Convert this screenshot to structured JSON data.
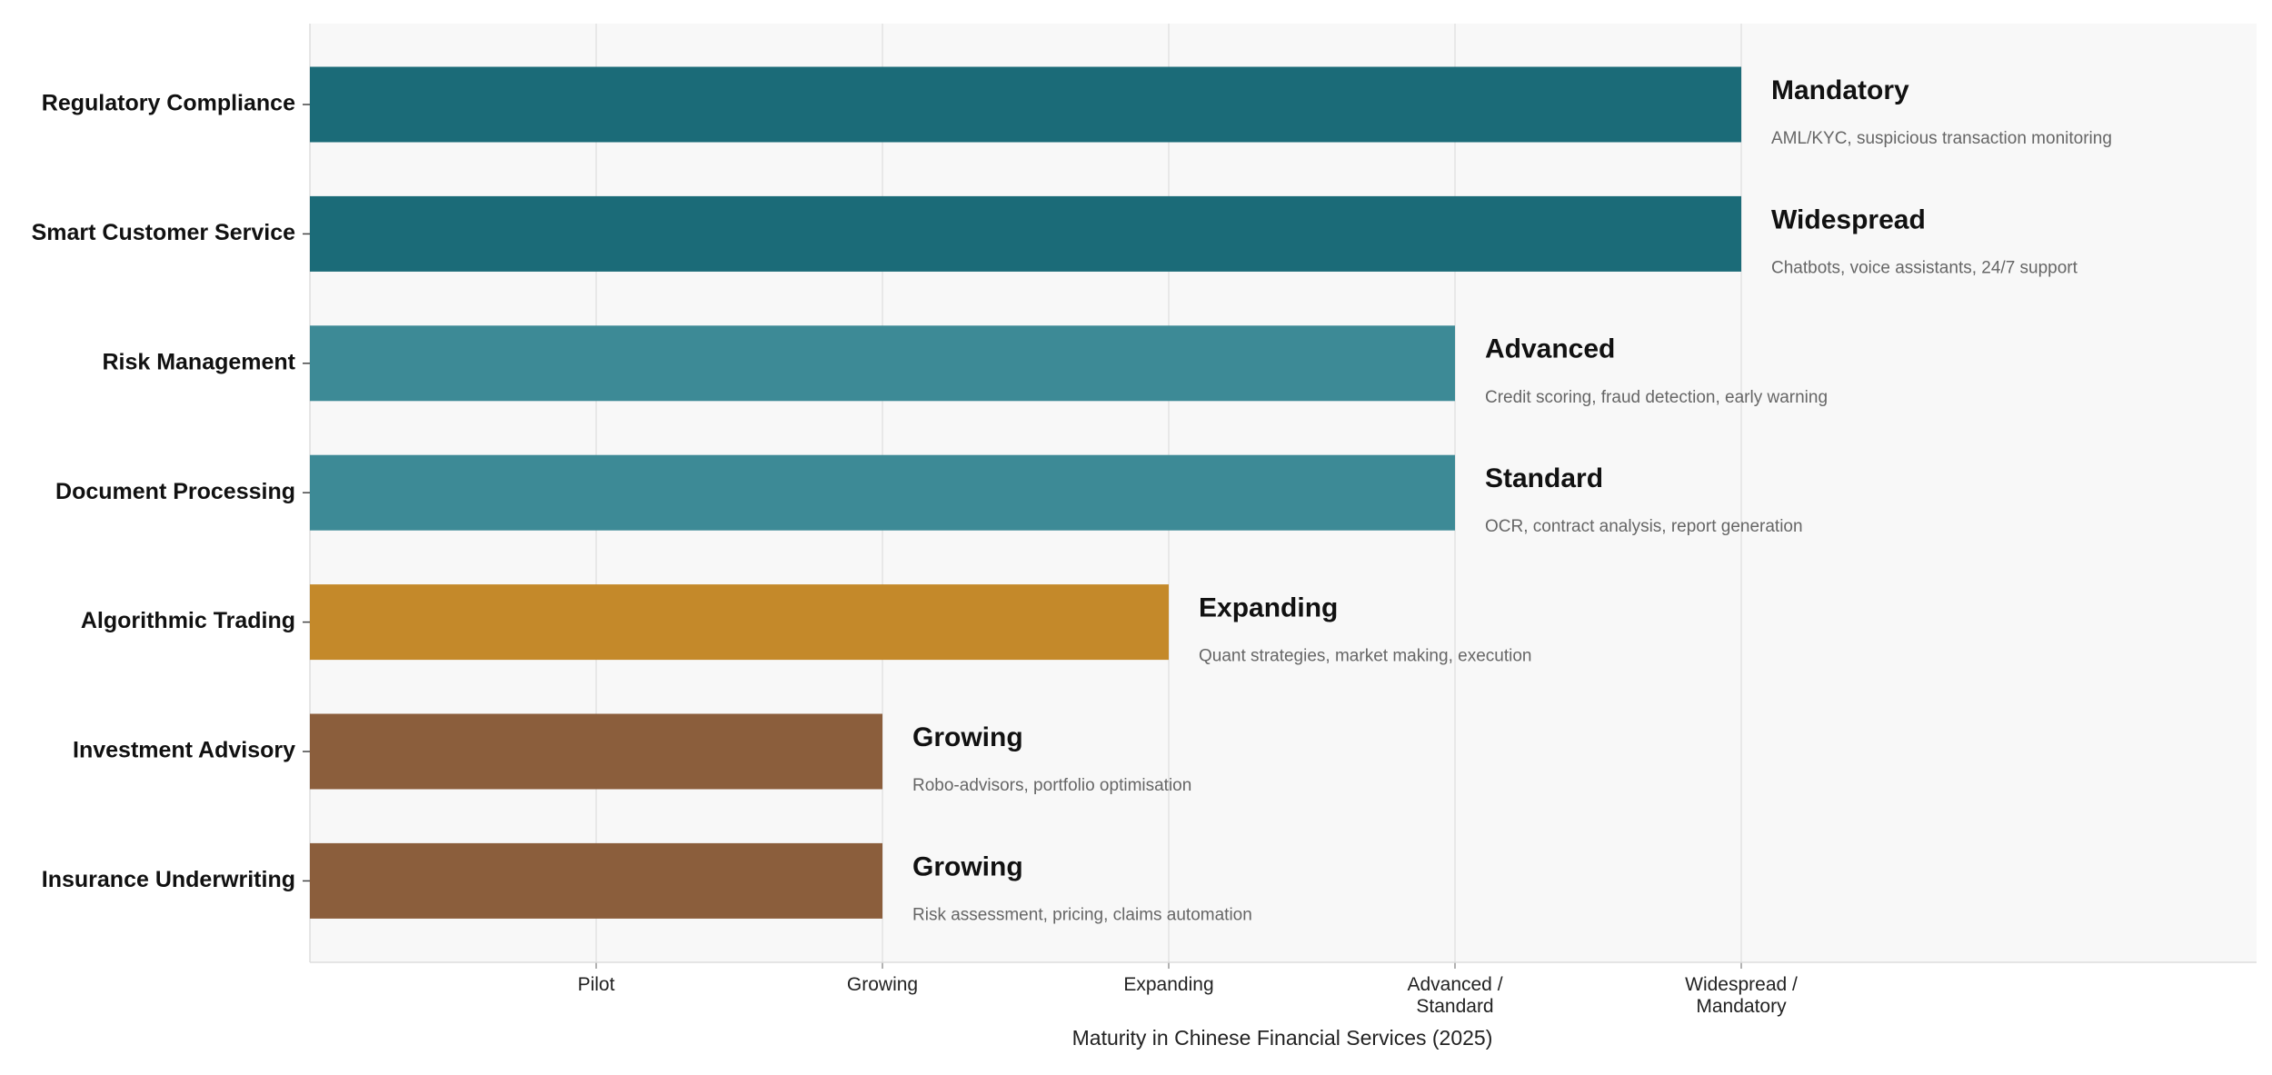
{
  "chart_data": {
    "type": "barh",
    "categories": [
      "Regulatory Compliance",
      "Smart Customer Service",
      "Risk Management",
      "Document Processing",
      "Algorithmic Trading",
      "Investment Advisory",
      "Insurance Underwriting"
    ],
    "values": [
      5,
      5,
      4,
      4,
      3,
      2,
      2
    ],
    "value_labels": [
      "Mandatory",
      "Widespread",
      "Advanced",
      "Standard",
      "Expanding",
      "Growing",
      "Growing"
    ],
    "descriptions": [
      "AML/KYC, suspicious transaction monitoring",
      "Chatbots, voice assistants, 24/7 support",
      "Credit scoring, fraud detection, early warning",
      "OCR, contract analysis, report generation",
      "Quant strategies, market making, execution",
      "Robo-advisors, portfolio optimisation",
      "Risk assessment, pricing, claims automation"
    ],
    "colors": [
      "#1b6b78",
      "#1b6b78",
      "#3d8a96",
      "#3d8a96",
      "#c4892a",
      "#8b5e3c",
      "#8b5e3c"
    ],
    "xlim": [
      0,
      6.8
    ],
    "xticks": [
      {
        "value": 1,
        "label": "Pilot"
      },
      {
        "value": 2,
        "label": "Growing"
      },
      {
        "value": 3,
        "label": "Expanding"
      },
      {
        "value": 4,
        "label": "Advanced /\nStandard"
      },
      {
        "value": 5,
        "label": "Widespread /\nMandatory"
      }
    ],
    "xlabel": "Maturity in Chinese Financial Services (2025)",
    "grid": true
  }
}
